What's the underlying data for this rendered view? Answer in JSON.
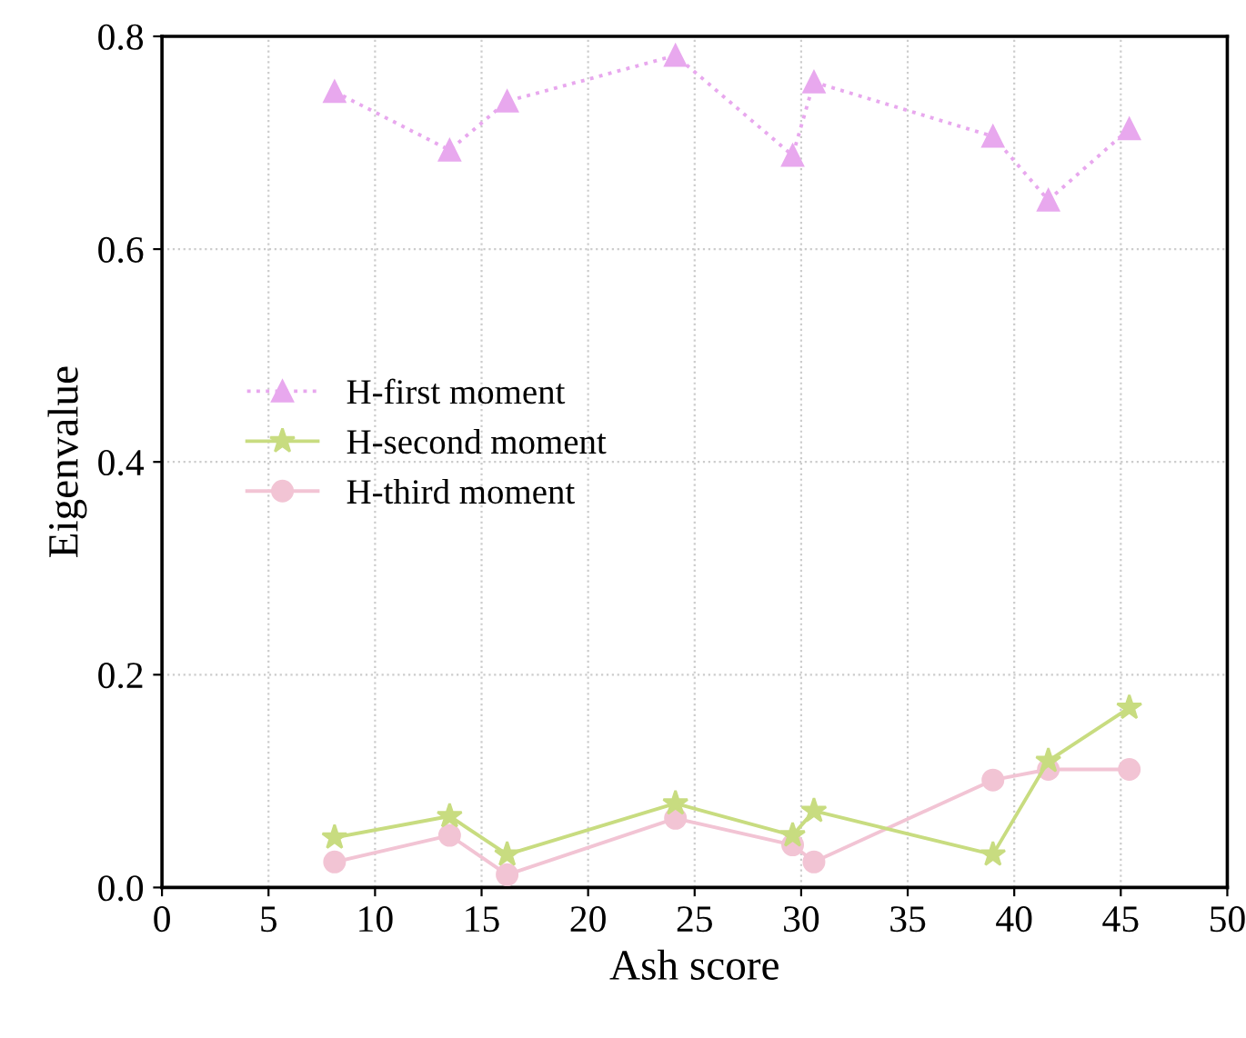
{
  "chart_data": {
    "type": "line",
    "xlabel": "Ash score",
    "ylabel": "Eigenvalue",
    "xlim": [
      0,
      50
    ],
    "xticks": [
      0,
      5,
      10,
      15,
      20,
      25,
      30,
      35,
      40,
      45,
      50
    ],
    "ylim": [
      0,
      0.8
    ],
    "yticks": [
      "0.0",
      {
        "value": 0.2,
        "label": "0.2"
      },
      {
        "value": 0.4,
        "label": "0.4"
      },
      {
        "value": 0.6,
        "label": "0.6"
      },
      {
        "value": 0.8,
        "label": "0.8"
      }
    ],
    "grid": true,
    "legend": "left",
    "series": [
      {
        "name": "H-first moment",
        "color": "#e8a8ee",
        "marker": "triangle",
        "line_style": "dotted",
        "x": [
          8.1,
          13.5,
          16.2,
          24.1,
          29.6,
          30.6,
          39.0,
          41.6,
          45.4
        ],
        "values": [
          0.748,
          0.693,
          0.739,
          0.782,
          0.688,
          0.757,
          0.706,
          0.646,
          0.713
        ]
      },
      {
        "name": "H-second moment",
        "color": "#c8dc80",
        "marker": "star",
        "line_style": "solid",
        "x": [
          8.1,
          13.5,
          16.2,
          24.1,
          29.6,
          30.6,
          39.0,
          41.6,
          45.4
        ],
        "values": [
          0.047,
          0.067,
          0.031,
          0.079,
          0.049,
          0.072,
          0.031,
          0.119,
          0.169
        ]
      },
      {
        "name": "H-third moment",
        "color": "#f2c4d4",
        "marker": "circle",
        "line_style": "solid",
        "x": [
          8.1,
          13.5,
          16.2,
          24.1,
          29.6,
          30.6,
          39.0,
          41.6,
          45.4
        ],
        "values": [
          0.024,
          0.049,
          0.012,
          0.065,
          0.04,
          0.024,
          0.101,
          0.111,
          0.111
        ]
      }
    ]
  }
}
